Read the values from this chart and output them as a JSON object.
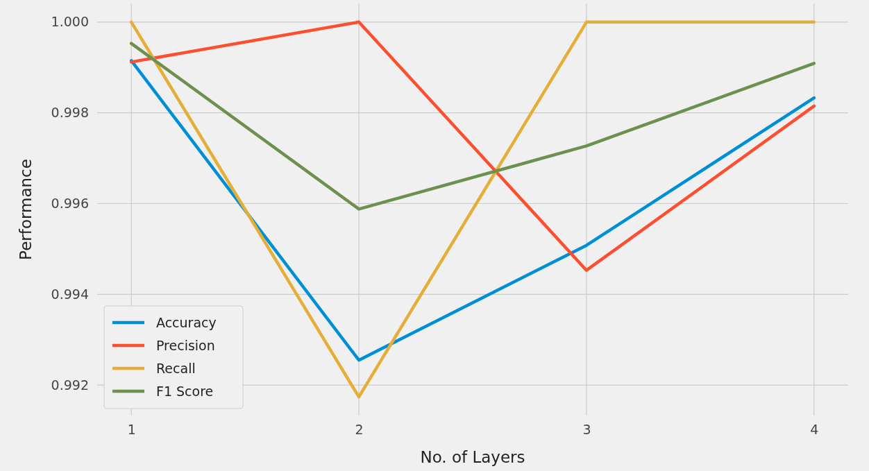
{
  "chart_data": {
    "type": "line",
    "xlabel": "No. of Layers",
    "ylabel": "Performance",
    "x": [
      1,
      2,
      3,
      4
    ],
    "series": [
      {
        "name": "Accuracy",
        "color": "#008fd5",
        "values": [
          0.99915,
          0.99255,
          0.99508,
          0.99833
        ]
      },
      {
        "name": "Precision",
        "color": "#fc4f30",
        "values": [
          0.99912,
          1.0,
          0.99453,
          0.99815
        ]
      },
      {
        "name": "Recall",
        "color": "#e5ae38",
        "values": [
          1.0,
          0.99174,
          1.0,
          1.0
        ]
      },
      {
        "name": "F1 Score",
        "color": "#6d904f",
        "values": [
          0.99953,
          0.99588,
          0.99727,
          0.99909
        ]
      }
    ],
    "xlim": [
      0.85,
      4.15
    ],
    "ylim": [
      0.99133,
      1.00041
    ],
    "xticks": [
      1,
      2,
      3,
      4
    ],
    "yticks": [
      0.992,
      0.994,
      0.996,
      0.998,
      {
        "value": 1,
        "label": "1.000"
      }
    ],
    "grid": true,
    "legend": "bottom left",
    "marker": "none",
    "line_style": "solid"
  }
}
